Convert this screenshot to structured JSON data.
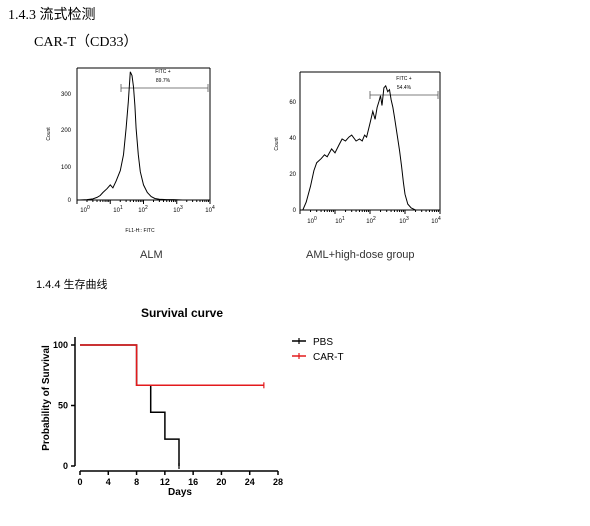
{
  "section_143": {
    "number": "1.4.3",
    "title": "流式检测"
  },
  "subtitle": "CAR-T（CD33）",
  "flow_left": {
    "gate_label": "FITC +",
    "gate_value": "89.7%",
    "ylabel": "Count",
    "xlabel": "FL1-H:: FITC",
    "yticks": [
      "0",
      "100",
      "200",
      "300"
    ],
    "caption": "ALM"
  },
  "flow_right": {
    "gate_label": "FITC +",
    "gate_value": "54.4%",
    "ylabel": "Count",
    "yticks": [
      "0",
      "20",
      "40",
      "60"
    ],
    "caption": "AML+high-dose group"
  },
  "flow_xticks": {
    "base": "10",
    "exponents": [
      "0",
      "1",
      "2",
      "3",
      "4"
    ]
  },
  "section_144": {
    "number": "1.4.4",
    "title": "生存曲线"
  },
  "chart_data": [
    {
      "type": "histogram",
      "title": "",
      "xlabel": "FL1-H:: FITC",
      "ylabel": "Count",
      "x_scale": "log",
      "xlim": [
        1,
        10000
      ],
      "ylim": [
        0,
        350
      ],
      "gate": {
        "label": "FITC +",
        "percent": 89.7,
        "range": [
          3,
          6000
        ]
      },
      "x": [
        1.2,
        2,
        3,
        4,
        5,
        6,
        8,
        10,
        12,
        15,
        20,
        25,
        30,
        35,
        40,
        45,
        50,
        55,
        60,
        70,
        80,
        100,
        130,
        170,
        220,
        300,
        500,
        800,
        1500,
        3000
      ],
      "values": [
        0,
        1,
        3,
        7,
        12,
        20,
        30,
        40,
        32,
        50,
        78,
        120,
        190,
        260,
        340,
        330,
        300,
        250,
        190,
        120,
        75,
        40,
        20,
        9,
        4,
        2,
        1,
        1,
        0,
        0
      ]
    },
    {
      "type": "histogram",
      "title": "",
      "xlabel": "",
      "ylabel": "Count",
      "x_scale": "log",
      "xlim": [
        1,
        10000
      ],
      "ylim": [
        0,
        70
      ],
      "gate": {
        "label": "FITC +",
        "percent": 54.4,
        "range": [
          80,
          10000
        ]
      },
      "x": [
        1.2,
        1.5,
        2,
        2.5,
        3,
        4,
        5,
        6,
        8,
        10,
        13,
        16,
        20,
        25,
        30,
        40,
        50,
        60,
        70,
        80,
        100,
        120,
        140,
        160,
        180,
        200,
        220,
        250,
        280,
        320,
        360,
        400,
        450,
        500,
        600,
        700,
        800,
        900,
        1000,
        1200,
        1500,
        2000,
        3000,
        5000
      ],
      "values": [
        0,
        4,
        12,
        20,
        24,
        26,
        28,
        27,
        31,
        29,
        33,
        36,
        35,
        37,
        38,
        35,
        36,
        35,
        38,
        37,
        44,
        50,
        46,
        52,
        55,
        58,
        53,
        62,
        63,
        60,
        61,
        56,
        52,
        47,
        38,
        30,
        22,
        14,
        8,
        3,
        1,
        0,
        0,
        0
      ]
    },
    {
      "type": "line",
      "title": "Survival curve",
      "xlabel": "Days",
      "ylabel": "Probability of Survival",
      "xlim": [
        0,
        28
      ],
      "ylim": [
        0,
        100
      ],
      "xticks": [
        0,
        4,
        8,
        12,
        16,
        20,
        24,
        28
      ],
      "yticks": [
        0,
        50,
        100
      ],
      "legend": "top-right",
      "series": [
        {
          "name": "PBS",
          "color": "#000000",
          "x": [
            0,
            8,
            8,
            10,
            10,
            12,
            12,
            14,
            14
          ],
          "y": [
            100,
            100,
            66.7,
            66.7,
            44.4,
            44.4,
            22.2,
            22.2,
            0
          ]
        },
        {
          "name": "CAR-T",
          "color": "#e31a1c",
          "x": [
            0,
            8,
            8,
            26
          ],
          "y": [
            100,
            100,
            66.7,
            66.7
          ]
        }
      ]
    }
  ]
}
